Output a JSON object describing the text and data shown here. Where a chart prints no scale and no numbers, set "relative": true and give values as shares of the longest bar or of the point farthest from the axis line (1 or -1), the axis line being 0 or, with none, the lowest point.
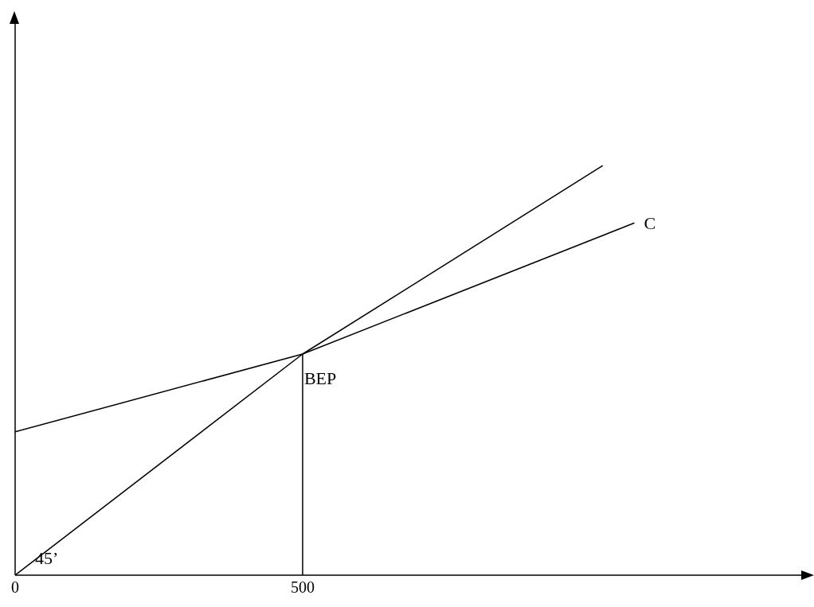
{
  "chart_data": {
    "type": "line",
    "relative": true,
    "xlim": [
      0,
      1370
    ],
    "xticks": [
      0,
      500
    ],
    "marker": "none",
    "series": [
      {
        "color": "#000000",
        "x": [
          0,
          500,
          1022
        ],
        "values": [
          0,
          0.54,
          1
        ]
      },
      {
        "name": "C",
        "color": "#000000",
        "x": [
          0,
          500,
          1077
        ],
        "values": [
          0.35,
          0.54,
          0.86
        ]
      },
      {
        "color": "#000000",
        "x": [
          500,
          500
        ],
        "values": [
          0,
          0.54
        ]
      }
    ],
    "annotations": [
      {
        "text": "BEP",
        "x": 500,
        "y": 0.54
      },
      "45’"
    ]
  }
}
